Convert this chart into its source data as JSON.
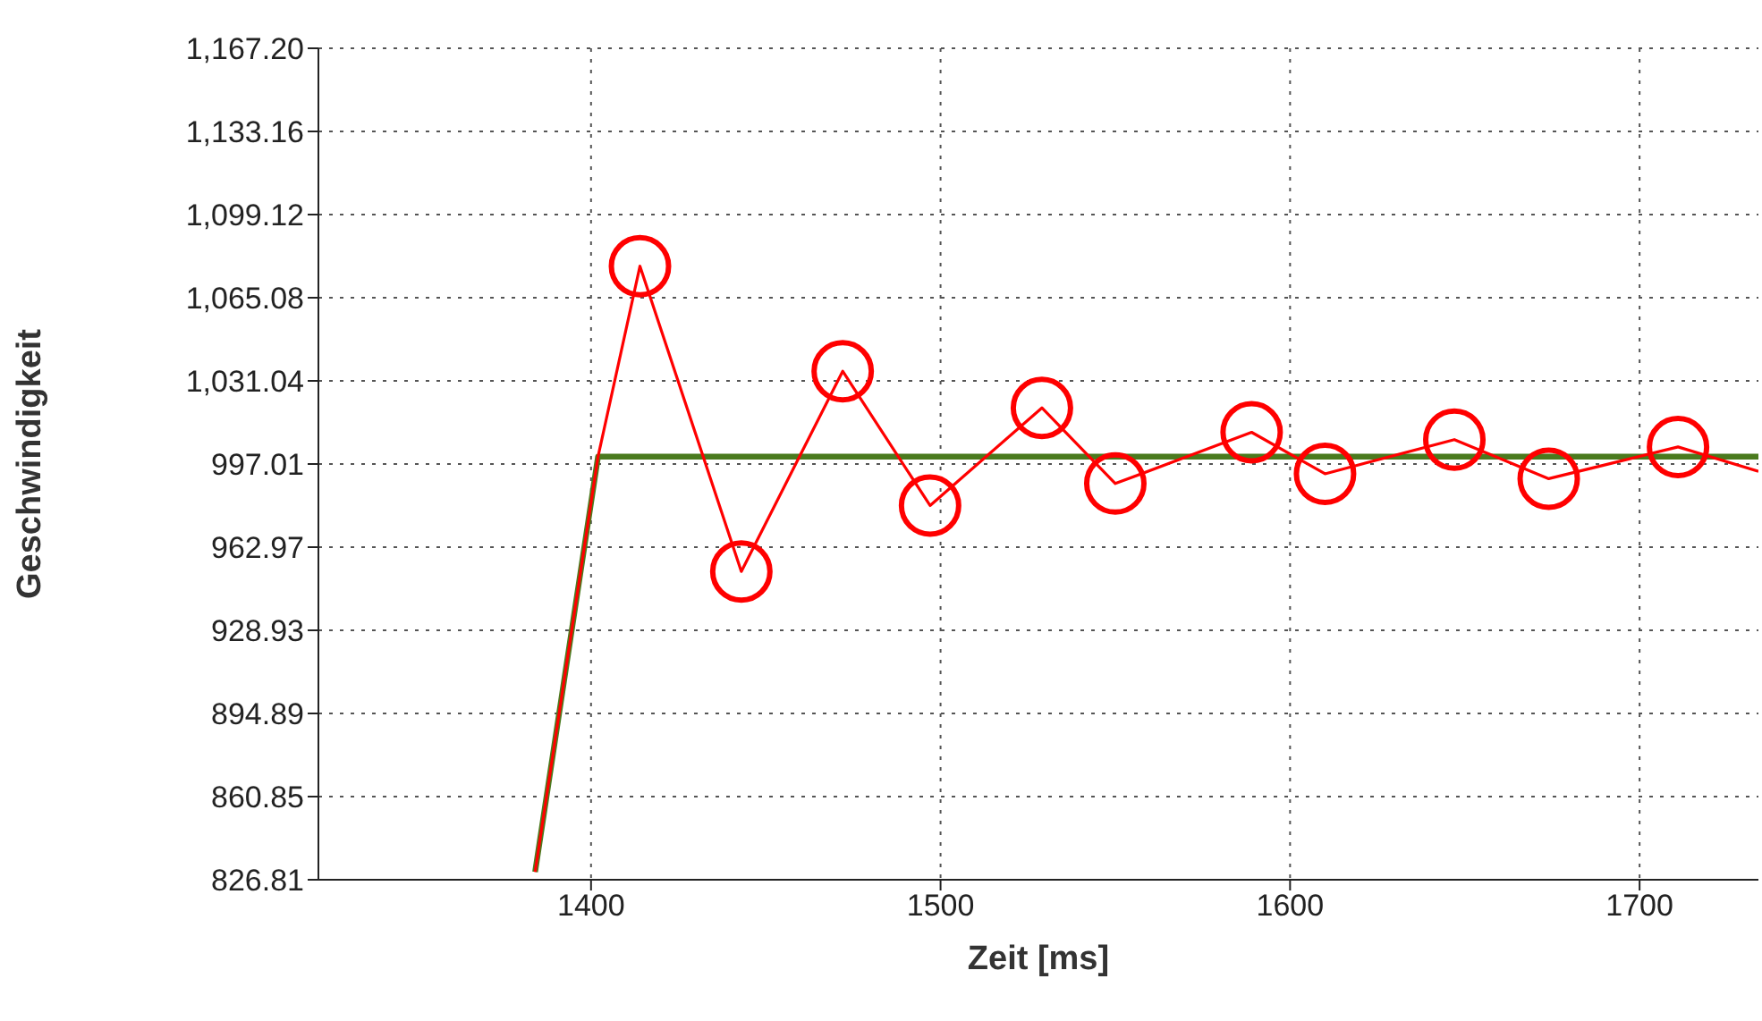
{
  "chart_data": {
    "type": "line",
    "xlabel": "Zeit [ms]",
    "ylabel": "Geschwindigkeit",
    "xlim": [
      1322,
      1734
    ],
    "xticks": [
      1400,
      1500,
      1600,
      1700
    ],
    "ylim": [
      826.81,
      1167.2
    ],
    "yticks": [
      {
        "value": 826.81,
        "label": "826.81"
      },
      {
        "value": 860.85,
        "label": "860.85"
      },
      {
        "value": 894.89,
        "label": "894.89"
      },
      {
        "value": 928.93,
        "label": "928.93"
      },
      {
        "value": 962.97,
        "label": "962.97"
      },
      {
        "value": 997.01,
        "label": "997.01"
      },
      {
        "value": 1031.04,
        "label": "1,031.04"
      },
      {
        "value": 1065.08,
        "label": "1,065.08"
      },
      {
        "value": 1099.12,
        "label": "1,099.12"
      },
      {
        "value": 1133.16,
        "label": "1,133.16"
      },
      {
        "value": 1167.2,
        "label": "1,167.20"
      }
    ],
    "grid": true,
    "line_style": "solid",
    "series": [
      {
        "color": "#4a7a1e",
        "x": [
          1384,
          1402,
          1734
        ],
        "values": [
          830,
          1000,
          1000
        ]
      },
      {
        "color": "#ff0000",
        "x": [
          1384,
          1402,
          1414,
          1443,
          1472,
          1497,
          1529,
          1550,
          1589,
          1610,
          1647,
          1674,
          1711,
          1734
        ],
        "values": [
          830,
          1000,
          1078,
          953,
          1035,
          980,
          1020,
          989,
          1010,
          993,
          1007,
          991,
          1004,
          994
        ]
      }
    ]
  }
}
